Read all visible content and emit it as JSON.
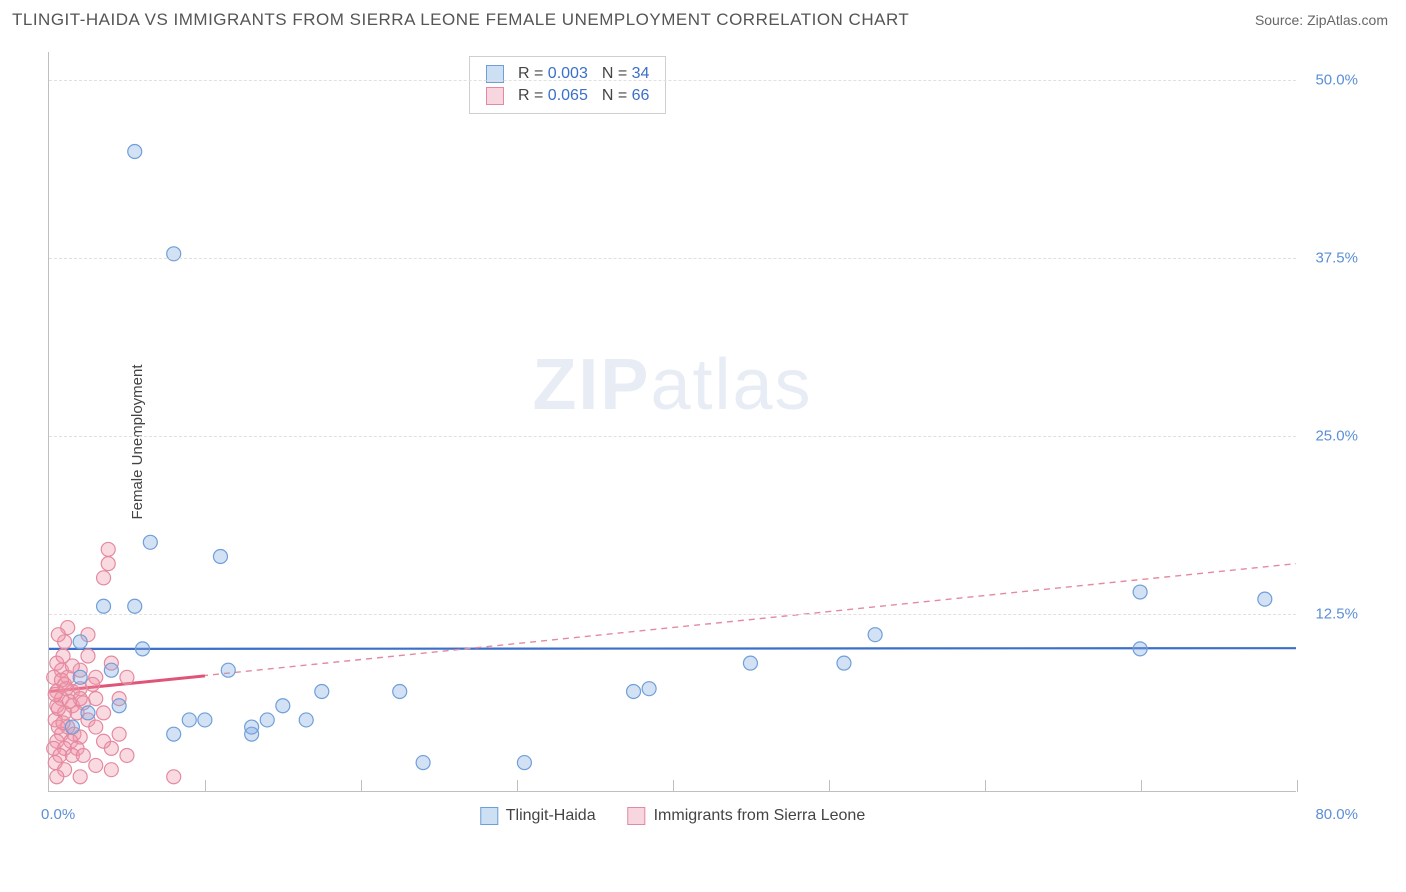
{
  "title": "TLINGIT-HAIDA VS IMMIGRANTS FROM SIERRA LEONE FEMALE UNEMPLOYMENT CORRELATION CHART",
  "source": "Source: ZipAtlas.com",
  "y_axis_label": "Female Unemployment",
  "watermark_bold": "ZIP",
  "watermark_light": "atlas",
  "chart": {
    "type": "scatter",
    "background_color": "#ffffff",
    "grid_color": "#e0e0e0",
    "axis_color": "#bfbfbf",
    "tick_label_color": "#5b8fd6",
    "xlim": [
      0,
      80
    ],
    "ylim": [
      0,
      52
    ],
    "y_ticks": [
      12.5,
      25.0,
      37.5,
      50.0
    ],
    "y_tick_labels": [
      "12.5%",
      "25.0%",
      "37.5%",
      "50.0%"
    ],
    "x_origin_label": "0.0%",
    "x_max_label": "80.0%",
    "x_gridlines": [
      10,
      20,
      30,
      40,
      50,
      60,
      70,
      80
    ],
    "marker_radius": 7,
    "marker_stroke_width": 1.2,
    "series": [
      {
        "name": "Tlingit-Haida",
        "color_fill": "rgba(130, 170, 225, 0.35)",
        "color_stroke": "#6f9fd8",
        "swatch_fill": "#cddff2",
        "swatch_stroke": "#6f9fd8",
        "r_value": "0.003",
        "n_value": "34",
        "trend": {
          "x1": 0,
          "y1": 10.0,
          "x2": 80,
          "y2": 10.05,
          "stroke": "#3b6fc9",
          "width": 2.2,
          "dash": "none"
        },
        "points": [
          [
            5.5,
            45.0
          ],
          [
            8.0,
            37.8
          ],
          [
            6.5,
            17.5
          ],
          [
            11.0,
            16.5
          ],
          [
            3.5,
            13.0
          ],
          [
            5.5,
            13.0
          ],
          [
            53.0,
            11.0
          ],
          [
            70.0,
            14.0
          ],
          [
            78.0,
            13.5
          ],
          [
            70.0,
            10.0
          ],
          [
            51.0,
            9.0
          ],
          [
            30.5,
            2.0
          ],
          [
            22.5,
            7.0
          ],
          [
            17.5,
            7.0
          ],
          [
            24.0,
            2.0
          ],
          [
            13.0,
            4.0
          ],
          [
            13.0,
            4.5
          ],
          [
            9.0,
            5.0
          ],
          [
            11.5,
            8.5
          ],
          [
            16.5,
            5.0
          ],
          [
            15.0,
            6.0
          ],
          [
            14.0,
            5.0
          ],
          [
            2.0,
            8.0
          ],
          [
            4.0,
            8.5
          ],
          [
            4.5,
            6.0
          ],
          [
            6.0,
            10.0
          ],
          [
            8.0,
            4.0
          ],
          [
            1.5,
            4.5
          ],
          [
            2.5,
            5.5
          ],
          [
            10.0,
            5.0
          ],
          [
            37.5,
            7.0
          ],
          [
            38.5,
            7.2
          ],
          [
            45.0,
            9.0
          ],
          [
            2.0,
            10.5
          ]
        ]
      },
      {
        "name": "Immigrants from Sierra Leone",
        "color_fill": "rgba(240, 150, 170, 0.35)",
        "color_stroke": "#e48aa0",
        "swatch_fill": "#f7d6df",
        "swatch_stroke": "#e48aa0",
        "r_value": "0.065",
        "n_value": "66",
        "trend": {
          "x1": 0,
          "y1": 7.0,
          "x2": 80,
          "y2": 16.0,
          "stroke": "#e48aa0",
          "width": 1.4,
          "dash": "6,5"
        },
        "trend_solid": {
          "x1": 0,
          "y1": 7.0,
          "x2": 10,
          "y2": 8.1,
          "stroke": "#e05577",
          "width": 3.0
        },
        "points": [
          [
            3.8,
            17.0
          ],
          [
            3.8,
            16.0
          ],
          [
            3.5,
            15.0
          ],
          [
            1.0,
            10.5
          ],
          [
            0.5,
            9.0
          ],
          [
            0.8,
            8.5
          ],
          [
            1.2,
            8.0
          ],
          [
            1.0,
            7.5
          ],
          [
            0.5,
            7.0
          ],
          [
            1.5,
            7.0
          ],
          [
            2.0,
            7.2
          ],
          [
            0.8,
            6.5
          ],
          [
            1.5,
            6.0
          ],
          [
            0.5,
            6.0
          ],
          [
            2.2,
            6.2
          ],
          [
            1.0,
            5.5
          ],
          [
            0.4,
            5.0
          ],
          [
            1.8,
            5.5
          ],
          [
            2.5,
            5.0
          ],
          [
            0.6,
            4.5
          ],
          [
            1.2,
            4.5
          ],
          [
            0.8,
            4.0
          ],
          [
            1.6,
            4.0
          ],
          [
            2.0,
            3.8
          ],
          [
            0.5,
            3.5
          ],
          [
            1.4,
            3.5
          ],
          [
            0.3,
            3.0
          ],
          [
            1.0,
            3.0
          ],
          [
            1.8,
            3.0
          ],
          [
            0.7,
            2.5
          ],
          [
            1.5,
            2.5
          ],
          [
            2.2,
            2.5
          ],
          [
            0.4,
            2.0
          ],
          [
            4.0,
            3.0
          ],
          [
            3.0,
            4.5
          ],
          [
            3.5,
            5.5
          ],
          [
            4.5,
            6.5
          ],
          [
            3.0,
            8.0
          ],
          [
            5.0,
            8.0
          ],
          [
            2.0,
            8.5
          ],
          [
            4.0,
            9.0
          ],
          [
            2.5,
            9.5
          ],
          [
            3.0,
            6.5
          ],
          [
            0.9,
            9.5
          ],
          [
            3.5,
            3.5
          ],
          [
            4.5,
            4.0
          ],
          [
            5.0,
            2.5
          ],
          [
            2.5,
            11.0
          ],
          [
            1.2,
            11.5
          ],
          [
            0.6,
            11.0
          ],
          [
            8.0,
            1.0
          ],
          [
            4.0,
            1.5
          ],
          [
            1.0,
            1.5
          ],
          [
            2.0,
            1.0
          ],
          [
            0.5,
            1.0
          ],
          [
            3.0,
            1.8
          ],
          [
            0.3,
            8.0
          ],
          [
            0.8,
            7.8
          ],
          [
            1.5,
            8.8
          ],
          [
            2.0,
            6.5
          ],
          [
            0.4,
            6.8
          ],
          [
            1.1,
            7.2
          ],
          [
            2.8,
            7.5
          ],
          [
            0.6,
            5.8
          ],
          [
            1.3,
            6.3
          ],
          [
            0.9,
            4.8
          ]
        ]
      }
    ],
    "legend_stats_labels": {
      "r": "R =",
      "n": "N ="
    },
    "bottom_legend": [
      "Tlingit-Haida",
      "Immigrants from Sierra Leone"
    ]
  }
}
